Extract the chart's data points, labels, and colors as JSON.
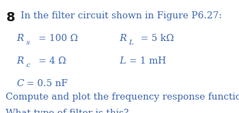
{
  "background_color": "#ffffff",
  "problem_number": "8",
  "title_text": "In the filter circuit shown in Figure P6.27:",
  "params_col0": [
    {
      "italic": "R",
      "sub": "s",
      "normal": " = 100 Ω"
    },
    {
      "italic": "R",
      "sub": "c",
      "normal": " = 4 Ω"
    },
    {
      "italic": "C",
      "sub": "",
      "normal": " = 0.5 nF"
    }
  ],
  "params_col1": [
    {
      "italic": "R",
      "sub": "L",
      "normal": " = 5 kΩ"
    },
    {
      "italic": "L",
      "sub": "",
      "normal": " = 1 mH"
    }
  ],
  "body_line1": "Compute and plot the frequency response function.",
  "body_line2": "What type of filter is this?",
  "text_color": "#4068b0",
  "number_color": "#1a1a1a",
  "title_fontsize": 9.5,
  "param_fontsize": 9.5,
  "body_fontsize": 9.5,
  "number_fontsize": 13,
  "figsize": [
    3.37,
    1.6
  ],
  "dpi": 100
}
